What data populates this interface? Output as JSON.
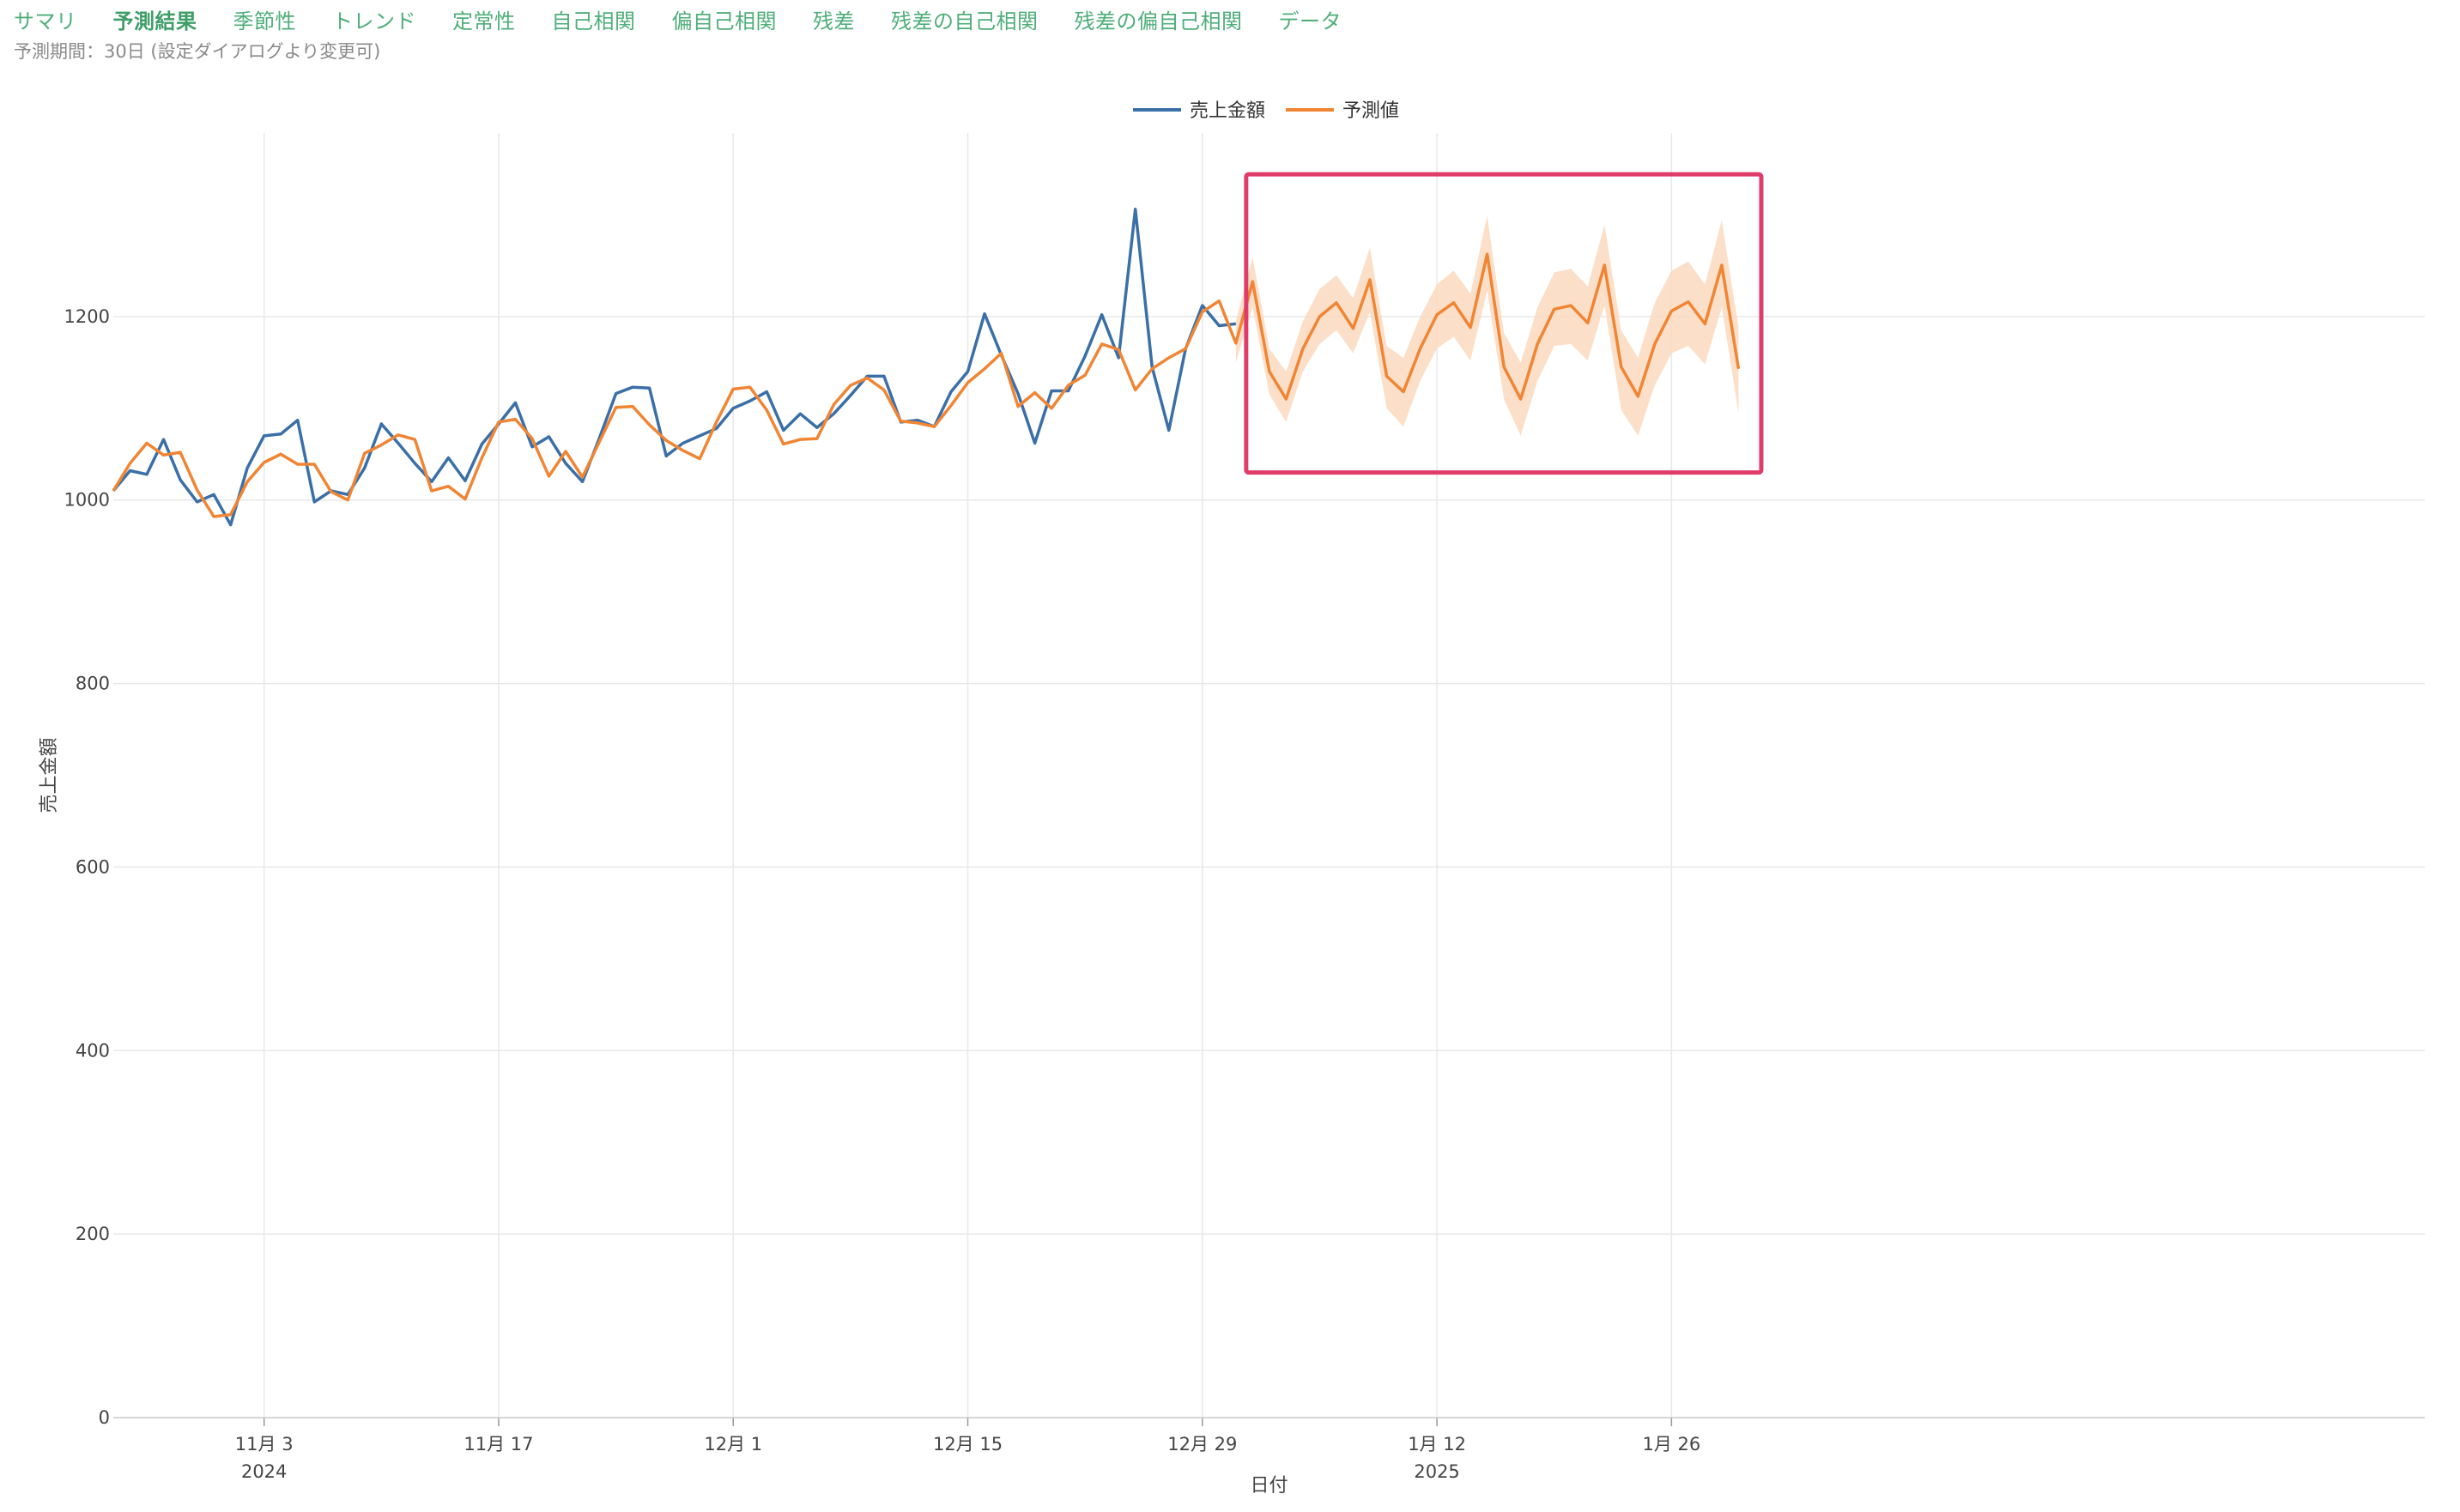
{
  "tabs": [
    {
      "label": "サマリ",
      "active": false
    },
    {
      "label": "予測結果",
      "active": true
    },
    {
      "label": "季節性",
      "active": false
    },
    {
      "label": "トレンド",
      "active": false
    },
    {
      "label": "定常性",
      "active": false
    },
    {
      "label": "自己相関",
      "active": false
    },
    {
      "label": "偏自己相関",
      "active": false
    },
    {
      "label": "残差",
      "active": false
    },
    {
      "label": "残差の自己相関",
      "active": false
    },
    {
      "label": "残差の偏自己相関",
      "active": false
    },
    {
      "label": "データ",
      "active": false
    }
  ],
  "subtitle": "予測期間：30日 (設定ダイアログより変更可)",
  "colors": {
    "actual": "#3a6fa8",
    "predicted": "#f08534",
    "band": "#fbd9c0",
    "highlight": "#e03c6a",
    "grid": "#e8e8e8"
  },
  "chart_data": {
    "type": "line",
    "xlabel": "日付",
    "ylabel": "売上金額",
    "ylim": [
      0,
      1400
    ],
    "y_ticks": [
      0,
      200,
      400,
      600,
      800,
      1000,
      1200
    ],
    "x_ticks": [
      {
        "date": "2024-11-03",
        "label": "11月 3",
        "sublabel": "2024"
      },
      {
        "date": "2024-11-17",
        "label": "11月 17",
        "sublabel": ""
      },
      {
        "date": "2024-12-01",
        "label": "12月 1",
        "sublabel": ""
      },
      {
        "date": "2024-12-15",
        "label": "12月 15",
        "sublabel": ""
      },
      {
        "date": "2024-12-29",
        "label": "12月 29",
        "sublabel": ""
      },
      {
        "date": "2025-01-12",
        "label": "1月 12",
        "sublabel": "2025"
      },
      {
        "date": "2025-01-26",
        "label": "1月 26",
        "sublabel": ""
      }
    ],
    "x_range": [
      "2024-10-25",
      "2025-01-30"
    ],
    "legend": [
      "売上金額",
      "予測値"
    ],
    "legend_position": "top-center",
    "highlight_region": {
      "x_start": "2024-12-31",
      "x_end": "2025-01-31",
      "y_min": 1030,
      "y_max": 1355
    },
    "series": [
      {
        "name": "売上金額",
        "dates": [
          "2024-10-25",
          "2024-10-26",
          "2024-10-27",
          "2024-10-28",
          "2024-10-29",
          "2024-10-30",
          "2024-10-31",
          "2024-11-01",
          "2024-11-02",
          "2024-11-03",
          "2024-11-04",
          "2024-11-05",
          "2024-11-06",
          "2024-11-07",
          "2024-11-08",
          "2024-11-09",
          "2024-11-10",
          "2024-11-11",
          "2024-11-12",
          "2024-11-13",
          "2024-11-14",
          "2024-11-15",
          "2024-11-16",
          "2024-11-17",
          "2024-11-18",
          "2024-11-19",
          "2024-11-20",
          "2024-11-21",
          "2024-11-22",
          "2024-11-23",
          "2024-11-24",
          "2024-11-25",
          "2024-11-26",
          "2024-11-27",
          "2024-11-28",
          "2024-11-29",
          "2024-11-30",
          "2024-12-01",
          "2024-12-02",
          "2024-12-03",
          "2024-12-04",
          "2024-12-05",
          "2024-12-06",
          "2024-12-07",
          "2024-12-08",
          "2024-12-09",
          "2024-12-10",
          "2024-12-11",
          "2024-12-12",
          "2024-12-13",
          "2024-12-14",
          "2024-12-15",
          "2024-12-16",
          "2024-12-17",
          "2024-12-18",
          "2024-12-19",
          "2024-12-20",
          "2024-12-21",
          "2024-12-22",
          "2024-12-23",
          "2024-12-24",
          "2024-12-25",
          "2024-12-26",
          "2024-12-27",
          "2024-12-28",
          "2024-12-29",
          "2024-12-30",
          "2024-12-31"
        ],
        "values": [
          1010,
          1032,
          1028,
          1066,
          1022,
          998,
          1006,
          973,
          1035,
          1070,
          1072,
          1087,
          998,
          1010,
          1006,
          1035,
          1083,
          1062,
          1040,
          1020,
          1046,
          1021,
          1061,
          1083,
          1106,
          1058,
          1069,
          1040,
          1020,
          1067,
          1116,
          1123,
          1122,
          1048,
          1062,
          1070,
          1078,
          1100,
          1108,
          1118,
          1076,
          1094,
          1079,
          1094,
          1114,
          1135,
          1135,
          1085,
          1087,
          1080,
          1118,
          1140,
          1203,
          1158,
          1116,
          1062,
          1119,
          1119,
          1157,
          1202,
          1155,
          1317,
          1145,
          1076,
          1165,
          1212,
          1190,
          1192
        ]
      },
      {
        "name": "予測値",
        "dates": [
          "2024-10-25",
          "2024-10-26",
          "2024-10-27",
          "2024-10-28",
          "2024-10-29",
          "2024-10-30",
          "2024-10-31",
          "2024-11-01",
          "2024-11-02",
          "2024-11-03",
          "2024-11-04",
          "2024-11-05",
          "2024-11-06",
          "2024-11-07",
          "2024-11-08",
          "2024-11-09",
          "2024-11-10",
          "2024-11-11",
          "2024-11-12",
          "2024-11-13",
          "2024-11-14",
          "2024-11-15",
          "2024-11-16",
          "2024-11-17",
          "2024-11-18",
          "2024-11-19",
          "2024-11-20",
          "2024-11-21",
          "2024-11-22",
          "2024-11-23",
          "2024-11-24",
          "2024-11-25",
          "2024-11-26",
          "2024-11-27",
          "2024-11-28",
          "2024-11-29",
          "2024-11-30",
          "2024-12-01",
          "2024-12-02",
          "2024-12-03",
          "2024-12-04",
          "2024-12-05",
          "2024-12-06",
          "2024-12-07",
          "2024-12-08",
          "2024-12-09",
          "2024-12-10",
          "2024-12-11",
          "2024-12-12",
          "2024-12-13",
          "2024-12-14",
          "2024-12-15",
          "2024-12-16",
          "2024-12-17",
          "2024-12-18",
          "2024-12-19",
          "2024-12-20",
          "2024-12-21",
          "2024-12-22",
          "2024-12-23",
          "2024-12-24",
          "2024-12-25",
          "2024-12-26",
          "2024-12-27",
          "2024-12-28",
          "2024-12-29",
          "2024-12-30",
          "2024-12-31",
          "2025-01-01",
          "2025-01-02",
          "2025-01-03",
          "2025-01-04",
          "2025-01-05",
          "2025-01-06",
          "2025-01-07",
          "2025-01-08",
          "2025-01-09",
          "2025-01-10",
          "2025-01-11",
          "2025-01-12",
          "2025-01-13",
          "2025-01-14",
          "2025-01-15",
          "2025-01-16",
          "2025-01-17",
          "2025-01-18",
          "2025-01-19",
          "2025-01-20",
          "2025-01-21",
          "2025-01-22",
          "2025-01-23",
          "2025-01-24",
          "2025-01-25",
          "2025-01-26",
          "2025-01-27",
          "2025-01-28",
          "2025-01-29",
          "2025-01-30"
        ],
        "values": [
          1010,
          1040,
          1062,
          1049,
          1052,
          1011,
          982,
          984,
          1020,
          1041,
          1050,
          1039,
          1039,
          1009,
          1000,
          1051,
          1060,
          1071,
          1066,
          1010,
          1015,
          1001,
          1046,
          1085,
          1088,
          1067,
          1026,
          1053,
          1025,
          1063,
          1101,
          1102,
          1082,
          1065,
          1054,
          1045,
          1085,
          1121,
          1123,
          1098,
          1061,
          1066,
          1067,
          1104,
          1125,
          1133,
          1120,
          1086,
          1084,
          1080,
          1103,
          1128,
          1143,
          1160,
          1102,
          1117,
          1100,
          1125,
          1136,
          1170,
          1164,
          1120,
          1143,
          1155,
          1165,
          1205,
          1217,
          1171,
          1238,
          1140,
          1110,
          1165,
          1200,
          1215,
          1187,
          1240,
          1135,
          1118,
          1165,
          1202,
          1215,
          1188,
          1268,
          1145,
          1110,
          1170,
          1208,
          1212,
          1193,
          1256,
          1145,
          1113,
          1170,
          1206,
          1216,
          1192,
          1256,
          1143
        ]
      }
    ],
    "confidence_band": {
      "dates": [
        "2024-12-31",
        "2025-01-01",
        "2025-01-02",
        "2025-01-03",
        "2025-01-04",
        "2025-01-05",
        "2025-01-06",
        "2025-01-07",
        "2025-01-08",
        "2025-01-09",
        "2025-01-10",
        "2025-01-11",
        "2025-01-12",
        "2025-01-13",
        "2025-01-14",
        "2025-01-15",
        "2025-01-16",
        "2025-01-17",
        "2025-01-18",
        "2025-01-19",
        "2025-01-20",
        "2025-01-21",
        "2025-01-22",
        "2025-01-23",
        "2025-01-24",
        "2025-01-25",
        "2025-01-26",
        "2025-01-27",
        "2025-01-28",
        "2025-01-29",
        "2025-01-30"
      ],
      "upper": [
        1195,
        1265,
        1165,
        1140,
        1195,
        1230,
        1245,
        1220,
        1275,
        1168,
        1155,
        1200,
        1235,
        1250,
        1225,
        1310,
        1182,
        1150,
        1210,
        1248,
        1252,
        1233,
        1300,
        1185,
        1155,
        1215,
        1250,
        1260,
        1235,
        1305,
        1188
      ],
      "lower": [
        1150,
        1210,
        1115,
        1085,
        1140,
        1170,
        1185,
        1160,
        1205,
        1100,
        1080,
        1130,
        1165,
        1178,
        1152,
        1228,
        1110,
        1070,
        1130,
        1168,
        1170,
        1152,
        1212,
        1098,
        1070,
        1125,
        1160,
        1168,
        1148,
        1210,
        1095
      ]
    }
  }
}
